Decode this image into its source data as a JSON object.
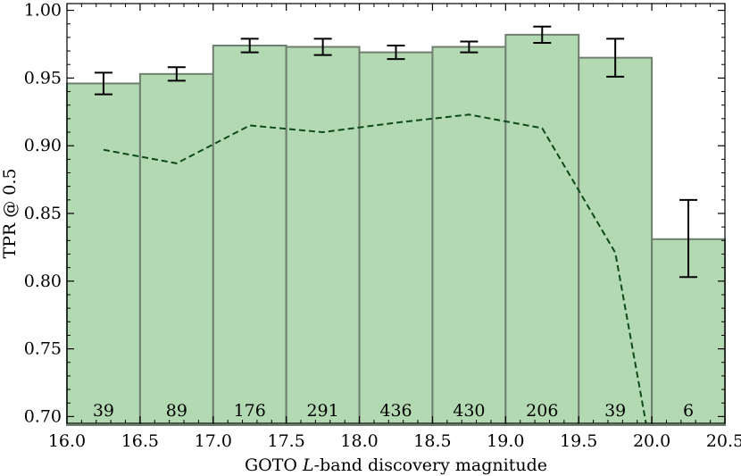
{
  "chart_data": {
    "type": "bar",
    "xlabel_prefix": "GOTO ",
    "xlabel_italic": "L",
    "xlabel_suffix": "-band discovery magnitude",
    "ylabel": "TPR @ 0.5",
    "xlim": [
      16.0,
      20.5
    ],
    "ylim": [
      0.695,
      1.005
    ],
    "xticks": [
      "16.0",
      "16.5",
      "17.0",
      "17.5",
      "18.0",
      "18.5",
      "19.0",
      "19.5",
      "20.0",
      "20.5"
    ],
    "yticks": [
      "0.70",
      "0.75",
      "0.80",
      "0.85",
      "0.90",
      "0.95",
      "1.00"
    ],
    "bins": [
      {
        "x0": 16.0,
        "x1": 16.5,
        "value": 0.946,
        "err_low": 0.938,
        "err_high": 0.954,
        "count": "39"
      },
      {
        "x0": 16.5,
        "x1": 17.0,
        "value": 0.953,
        "err_low": 0.948,
        "err_high": 0.958,
        "count": "89"
      },
      {
        "x0": 17.0,
        "x1": 17.5,
        "value": 0.974,
        "err_low": 0.969,
        "err_high": 0.979,
        "count": "176"
      },
      {
        "x0": 17.5,
        "x1": 18.0,
        "value": 0.973,
        "err_low": 0.967,
        "err_high": 0.979,
        "count": "291"
      },
      {
        "x0": 18.0,
        "x1": 18.5,
        "value": 0.969,
        "err_low": 0.964,
        "err_high": 0.974,
        "count": "436"
      },
      {
        "x0": 18.5,
        "x1": 19.0,
        "value": 0.973,
        "err_low": 0.969,
        "err_high": 0.977,
        "count": "430"
      },
      {
        "x0": 19.0,
        "x1": 19.5,
        "value": 0.982,
        "err_low": 0.976,
        "err_high": 0.988,
        "count": "206"
      },
      {
        "x0": 19.5,
        "x1": 20.0,
        "value": 0.965,
        "err_low": 0.951,
        "err_high": 0.979,
        "count": "39"
      },
      {
        "x0": 20.0,
        "x1": 20.5,
        "value": 0.831,
        "err_low": 0.803,
        "err_high": 0.86,
        "count": "6"
      }
    ],
    "dashed_line": {
      "x": [
        16.25,
        16.75,
        17.25,
        17.75,
        18.25,
        18.75,
        19.25,
        19.75,
        19.96
      ],
      "y": [
        0.897,
        0.887,
        0.915,
        0.91,
        0.917,
        0.923,
        0.913,
        0.821,
        0.695
      ]
    },
    "colors": {
      "bar_fill": "#b3d9b3",
      "bar_edge": "#6f7f6f",
      "error_bar": "#000000",
      "dashed_line": "#0d4a1a"
    }
  }
}
